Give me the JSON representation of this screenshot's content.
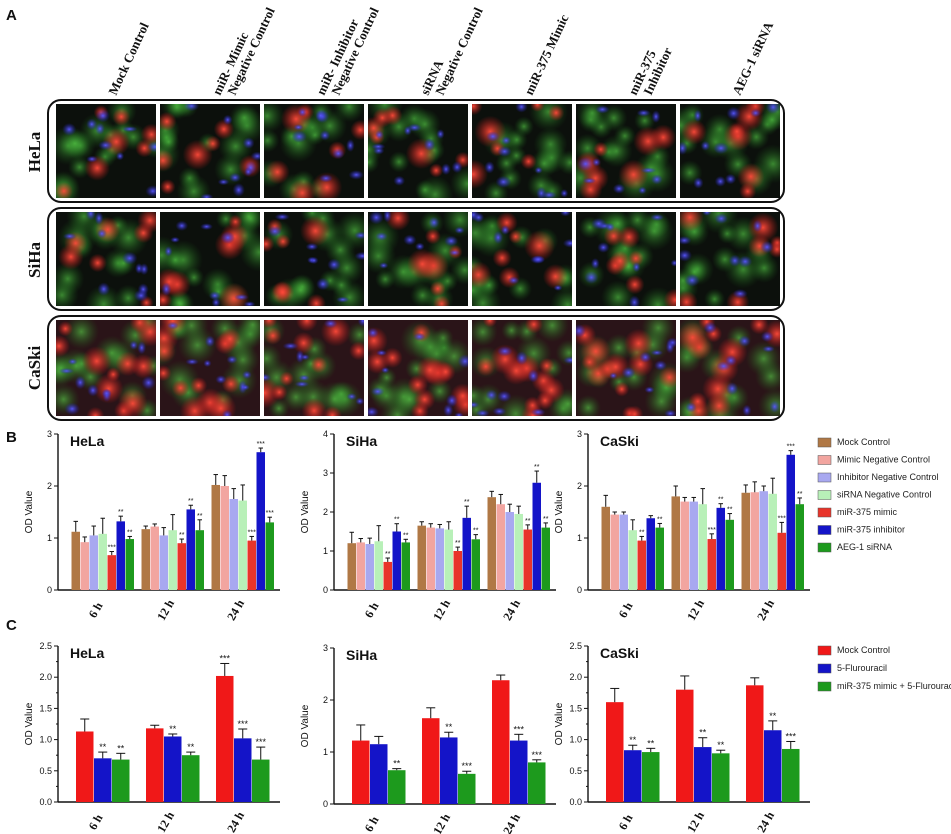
{
  "panel_labels": [
    "A",
    "B",
    "C"
  ],
  "panel_a": {
    "column_labels": [
      [
        "Mock Control"
      ],
      [
        "miR- Mimic",
        "Negative Control"
      ],
      [
        "miR- Inhibitor",
        "Negative Control"
      ],
      [
        "siRNA",
        "Negative Control"
      ],
      [
        "miR-375 Mimic"
      ],
      [
        "miR-375",
        "Inhibitor"
      ],
      [
        "AEG-1 siRNA"
      ]
    ],
    "row_labels": [
      "HeLa",
      "SiHa",
      "CaSki"
    ]
  },
  "colors": {
    "brown": "#b07845",
    "pink": "#f2a5a0",
    "lavender": "#a8a8f0",
    "lightgreen": "#b8f0b8",
    "red": "#e8342a",
    "blue": "#1414c8",
    "green": "#1d9a1d",
    "c_red": "#f01818"
  },
  "chart_data": [
    {
      "id": "B-HeLa",
      "type": "bar",
      "title": "HeLa",
      "ylabel": "OD Value",
      "categories": [
        "6 h",
        "12 h",
        "24 h"
      ],
      "ylim": [
        0,
        3
      ],
      "yticks": [
        0,
        1,
        2,
        3
      ],
      "yticklabels": [
        "0",
        "1",
        "2",
        "3"
      ],
      "series": [
        {
          "name": "Mock Control",
          "color": "#b07845",
          "values": [
            1.12,
            1.17,
            2.02
          ],
          "errors": [
            0.2,
            0.06,
            0.2
          ],
          "sig": [
            "",
            "",
            ""
          ]
        },
        {
          "name": "Mimic Negative Control",
          "color": "#f2a5a0",
          "values": [
            0.92,
            1.22,
            2.0
          ],
          "errors": [
            0.1,
            0.05,
            0.2
          ],
          "sig": [
            "",
            "",
            ""
          ]
        },
        {
          "name": "Inhibitor Negative Control",
          "color": "#a8a8f0",
          "values": [
            1.05,
            1.05,
            1.75
          ],
          "errors": [
            0.18,
            0.15,
            0.2
          ],
          "sig": [
            "",
            "",
            ""
          ]
        },
        {
          "name": "siRNA Negative Control",
          "color": "#b8f0b8",
          "values": [
            1.08,
            1.15,
            1.72
          ],
          "errors": [
            0.3,
            0.3,
            0.3
          ],
          "sig": [
            "",
            "",
            ""
          ]
        },
        {
          "name": "miR-375 mimic",
          "color": "#e8342a",
          "values": [
            0.67,
            0.9,
            0.95
          ],
          "errors": [
            0.07,
            0.08,
            0.08
          ],
          "sig": [
            "***",
            "**",
            "***"
          ]
        },
        {
          "name": "miR-375 inhibitor",
          "color": "#1414c8",
          "values": [
            1.32,
            1.55,
            2.65
          ],
          "errors": [
            0.1,
            0.08,
            0.08
          ],
          "sig": [
            "**",
            "**",
            "***"
          ]
        },
        {
          "name": "AEG-1 siRNA",
          "color": "#1d9a1d",
          "values": [
            0.98,
            1.15,
            1.3
          ],
          "errors": [
            0.05,
            0.2,
            0.1
          ],
          "sig": [
            "**",
            "**",
            "***"
          ]
        }
      ]
    },
    {
      "id": "B-SiHa",
      "type": "bar",
      "title": "SiHa",
      "ylabel": "OD Value",
      "categories": [
        "6 h",
        "12 h",
        "24 h"
      ],
      "ylim": [
        0,
        4
      ],
      "yticks": [
        0,
        1,
        2,
        3,
        4
      ],
      "yticklabels": [
        "0",
        "1",
        "2",
        "3",
        "4"
      ],
      "series": [
        {
          "name": "Mock Control",
          "color": "#b07845",
          "values": [
            1.2,
            1.65,
            2.38
          ],
          "errors": [
            0.28,
            0.1,
            0.15
          ],
          "sig": [
            "",
            "",
            ""
          ]
        },
        {
          "name": "Mimic Negative Control",
          "color": "#f2a5a0",
          "values": [
            1.22,
            1.6,
            2.2
          ],
          "errors": [
            0.1,
            0.1,
            0.25
          ],
          "sig": [
            "",
            "",
            ""
          ]
        },
        {
          "name": "Inhibitor Negative Control",
          "color": "#a8a8f0",
          "values": [
            1.18,
            1.58,
            2.0
          ],
          "errors": [
            0.15,
            0.1,
            0.2
          ],
          "sig": [
            "",
            "",
            ""
          ]
        },
        {
          "name": "siRNA Negative Control",
          "color": "#b8f0b8",
          "values": [
            1.25,
            1.55,
            1.95
          ],
          "errors": [
            0.4,
            0.2,
            0.2
          ],
          "sig": [
            "",
            "",
            ""
          ]
        },
        {
          "name": "miR-375 mimic",
          "color": "#e8342a",
          "values": [
            0.72,
            1.0,
            1.55
          ],
          "errors": [
            0.1,
            0.1,
            0.12
          ],
          "sig": [
            "**",
            "**",
            "**"
          ]
        },
        {
          "name": "miR-375 inhibitor",
          "color": "#1414c8",
          "values": [
            1.5,
            1.85,
            2.75
          ],
          "errors": [
            0.2,
            0.3,
            0.3
          ],
          "sig": [
            "**",
            "**",
            "**"
          ]
        },
        {
          "name": "AEG-1 siRNA",
          "color": "#1d9a1d",
          "values": [
            1.22,
            1.3,
            1.6
          ],
          "errors": [
            0.08,
            0.12,
            0.12
          ],
          "sig": [
            "**",
            "**",
            "**"
          ]
        }
      ]
    },
    {
      "id": "B-CaSki",
      "type": "bar",
      "title": "CaSki",
      "ylabel": "OD Value",
      "categories": [
        "6 h",
        "12 h",
        "24 h"
      ],
      "ylim": [
        0,
        3
      ],
      "yticks": [
        0,
        1,
        2,
        3
      ],
      "yticklabels": [
        "0",
        "1",
        "2",
        "3"
      ],
      "series": [
        {
          "name": "Mock Control",
          "color": "#b07845",
          "values": [
            1.6,
            1.8,
            1.87
          ],
          "errors": [
            0.22,
            0.2,
            0.15
          ],
          "sig": [
            "",
            "",
            ""
          ]
        },
        {
          "name": "Mimic Negative Control",
          "color": "#f2a5a0",
          "values": [
            1.45,
            1.7,
            1.88
          ],
          "errors": [
            0.05,
            0.08,
            0.2
          ],
          "sig": [
            "",
            "",
            ""
          ]
        },
        {
          "name": "Inhibitor Negative Control",
          "color": "#a8a8f0",
          "values": [
            1.45,
            1.7,
            1.9
          ],
          "errors": [
            0.05,
            0.08,
            0.1
          ],
          "sig": [
            "",
            "",
            ""
          ]
        },
        {
          "name": "siRNA Negative Control",
          "color": "#b8f0b8",
          "values": [
            1.15,
            1.65,
            1.85
          ],
          "errors": [
            0.2,
            0.3,
            0.3
          ],
          "sig": [
            "",
            "",
            ""
          ]
        },
        {
          "name": "miR-375 mimic",
          "color": "#e8342a",
          "values": [
            0.95,
            0.98,
            1.1
          ],
          "errors": [
            0.08,
            0.1,
            0.2
          ],
          "sig": [
            "**",
            "***",
            "***"
          ]
        },
        {
          "name": "miR-375 inhibitor",
          "color": "#1414c8",
          "values": [
            1.38,
            1.58,
            2.6
          ],
          "errors": [
            0.05,
            0.08,
            0.08
          ],
          "sig": [
            "",
            "**",
            "***"
          ]
        },
        {
          "name": "AEG-1 siRNA",
          "color": "#1d9a1d",
          "values": [
            1.2,
            1.35,
            1.65
          ],
          "errors": [
            0.08,
            0.12,
            0.12
          ],
          "sig": [
            "**",
            "**",
            "**"
          ]
        }
      ]
    },
    {
      "id": "C-HeLa",
      "type": "bar",
      "title": "HeLa",
      "ylabel": "OD Value",
      "categories": [
        "6 h",
        "12 h",
        "24 h"
      ],
      "ylim": [
        0,
        2.5
      ],
      "yticks": [
        0,
        0.25,
        0.5,
        0.75,
        1,
        1.25,
        1.5,
        1.75,
        2,
        2.25,
        2.5
      ],
      "yticklabels": [
        "0.0",
        "",
        "0.5",
        "",
        "1.0",
        "",
        "1.5",
        "",
        "2.0",
        "",
        "2.5"
      ],
      "series": [
        {
          "name": "Mock Control",
          "color": "#f01818",
          "values": [
            1.13,
            1.18,
            2.02
          ],
          "errors": [
            0.2,
            0.05,
            0.2
          ],
          "sig": [
            "",
            "",
            "***"
          ]
        },
        {
          "name": "5-Flurouracil",
          "color": "#1414c8",
          "values": [
            0.7,
            1.05,
            1.02
          ],
          "errors": [
            0.1,
            0.04,
            0.15
          ],
          "sig": [
            "**",
            "**",
            "***"
          ]
        },
        {
          "name": "miR-375 mimic + 5-Flurouracil",
          "color": "#1d9a1d",
          "values": [
            0.68,
            0.75,
            0.68
          ],
          "errors": [
            0.1,
            0.05,
            0.2
          ],
          "sig": [
            "**",
            "**",
            "***"
          ]
        }
      ]
    },
    {
      "id": "C-SiHa",
      "type": "bar",
      "title": "SiHa",
      "ylabel": "OD Value",
      "categories": [
        "6 h",
        "12 h",
        "24 h"
      ],
      "ylim": [
        0,
        3
      ],
      "yticks": [
        0,
        1,
        2,
        3
      ],
      "yticklabels": [
        "0",
        "1",
        "2",
        "3"
      ],
      "series": [
        {
          "name": "Mock Control",
          "color": "#f01818",
          "values": [
            1.22,
            1.65,
            2.38
          ],
          "errors": [
            0.3,
            0.2,
            0.1
          ],
          "sig": [
            "",
            "",
            ""
          ]
        },
        {
          "name": "5-Flurouracil",
          "color": "#1414c8",
          "values": [
            1.15,
            1.28,
            1.22
          ],
          "errors": [
            0.15,
            0.1,
            0.12
          ],
          "sig": [
            "",
            "**",
            "***"
          ]
        },
        {
          "name": "miR-375 mimic + 5-Flurouracil",
          "color": "#1d9a1d",
          "values": [
            0.65,
            0.58,
            0.8
          ],
          "errors": [
            0.03,
            0.05,
            0.05
          ],
          "sig": [
            "**",
            "***",
            "***"
          ]
        }
      ]
    },
    {
      "id": "C-CaSki",
      "type": "bar",
      "title": "CaSki",
      "ylabel": "OD Value",
      "categories": [
        "6 h",
        "12 h",
        "24 h"
      ],
      "ylim": [
        0,
        2.5
      ],
      "yticks": [
        0,
        0.25,
        0.5,
        0.75,
        1,
        1.25,
        1.5,
        1.75,
        2,
        2.25,
        2.5
      ],
      "yticklabels": [
        "0.0",
        "",
        "0.5",
        "",
        "1.0",
        "",
        "1.5",
        "",
        "2.0",
        "",
        "2.5"
      ],
      "series": [
        {
          "name": "Mock Control",
          "color": "#f01818",
          "values": [
            1.6,
            1.8,
            1.87
          ],
          "errors": [
            0.22,
            0.22,
            0.12
          ],
          "sig": [
            "",
            "",
            ""
          ]
        },
        {
          "name": "5-Flurouracil",
          "color": "#1414c8",
          "values": [
            0.83,
            0.88,
            1.15
          ],
          "errors": [
            0.08,
            0.15,
            0.15
          ],
          "sig": [
            "**",
            "**",
            "**"
          ]
        },
        {
          "name": "miR-375 mimic + 5-Flurouracil",
          "color": "#1d9a1d",
          "values": [
            0.8,
            0.78,
            0.85
          ],
          "errors": [
            0.06,
            0.05,
            0.12
          ],
          "sig": [
            "**",
            "**",
            "***"
          ]
        }
      ]
    }
  ],
  "legends": {
    "B": [
      "Mock Control",
      "Mimic Negative Control",
      "Inhibitor Negative Control",
      "siRNA Negative Control",
      "miR-375 mimic",
      "miR-375 inhibitor",
      "AEG-1 siRNA"
    ],
    "C": [
      "Mock Control",
      "5-Flurouracil",
      "miR-375 mimic + 5-Flurouracil"
    ]
  }
}
